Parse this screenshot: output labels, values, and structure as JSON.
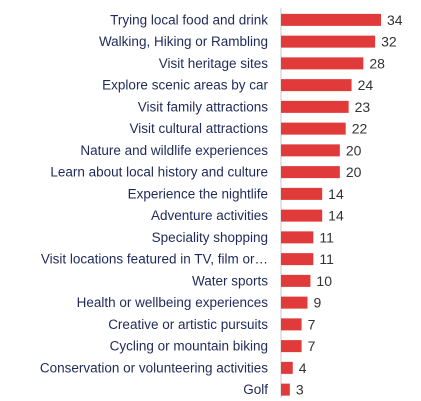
{
  "chart_data": {
    "type": "bar",
    "orientation": "horizontal",
    "categories": [
      "Trying local food and drink",
      "Walking, Hiking or Rambling",
      "Visit heritage sites",
      "Explore scenic areas by car",
      "Visit family attractions",
      "Visit cultural attractions",
      "Nature and wildlife experiences",
      "Learn about local history and culture",
      "Experience the nightlife",
      "Adventure activities",
      "Speciality shopping",
      "Visit locations featured in TV, film or…",
      "Water sports",
      "Health or wellbeing experiences",
      "Creative or artistic pursuits",
      "Cycling or mountain biking",
      "Conservation or volunteering activities",
      "Golf"
    ],
    "values": [
      34,
      32,
      28,
      24,
      23,
      22,
      20,
      20,
      14,
      14,
      11,
      11,
      10,
      9,
      7,
      7,
      4,
      3
    ],
    "data_labels": true,
    "grid": false,
    "legend": "none",
    "xlim": [
      0,
      34
    ],
    "colors": {
      "bar": "#e03a3a",
      "label_text": "#1f2a5a",
      "value_text": "#333333",
      "axis_line": "#c8c8c8"
    }
  }
}
